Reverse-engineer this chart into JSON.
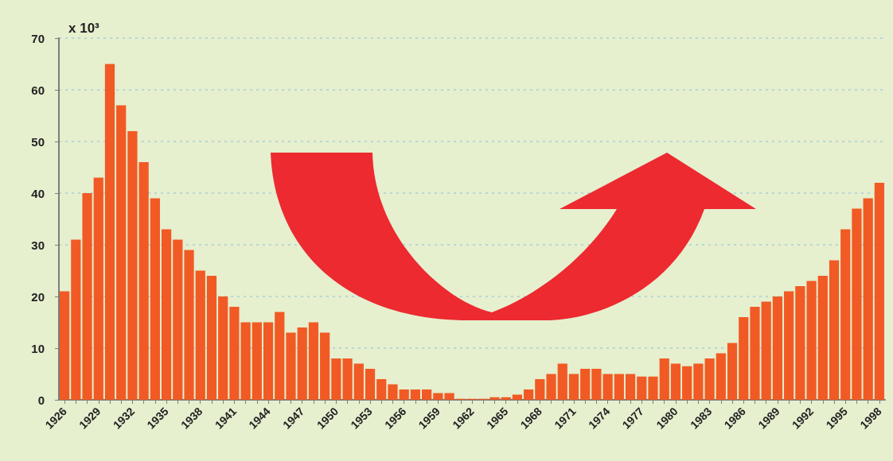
{
  "chart_data": {
    "type": "bar",
    "ylabel": "x 10³",
    "categories": [
      "1926",
      null,
      null,
      "1929",
      null,
      null,
      "1932",
      null,
      null,
      "1935",
      null,
      null,
      "1938",
      null,
      null,
      "1941",
      null,
      null,
      "1944",
      null,
      null,
      "1947",
      null,
      null,
      "1950",
      null,
      null,
      "1953",
      null,
      null,
      "1956",
      null,
      null,
      "1959",
      null,
      null,
      "1962",
      null,
      null,
      "1965",
      null,
      null,
      "1968",
      null,
      null,
      "1971",
      null,
      null,
      "1974",
      null,
      null,
      "1977",
      null,
      null,
      "1980",
      null,
      null,
      "1983",
      null,
      null,
      "1986",
      null,
      null,
      "1989",
      null,
      null,
      "1992",
      null,
      null,
      "1995",
      null,
      null,
      "1998"
    ],
    "values": [
      21,
      31,
      40,
      43,
      65,
      57,
      52,
      46,
      39,
      33,
      31,
      29,
      25,
      24,
      20,
      18,
      15,
      15,
      15,
      17,
      13,
      14,
      15,
      13,
      8,
      8,
      7,
      6,
      4,
      3,
      2,
      2,
      2,
      1.3,
      1.3,
      0.2,
      0.2,
      0.2,
      0.5,
      0.5,
      1,
      2,
      4,
      5,
      7,
      5,
      6,
      6,
      5,
      5,
      5,
      4.5,
      4.5,
      8,
      7,
      6.5,
      7,
      8,
      9,
      11,
      16,
      18,
      19,
      20,
      21,
      22,
      23,
      24,
      27,
      33,
      37,
      39,
      42
    ],
    "color": "#f15a24",
    "ylim": [
      0,
      70
    ],
    "yticks": [
      0,
      10,
      20,
      30,
      40,
      50,
      60,
      70
    ],
    "grid": "y"
  }
}
